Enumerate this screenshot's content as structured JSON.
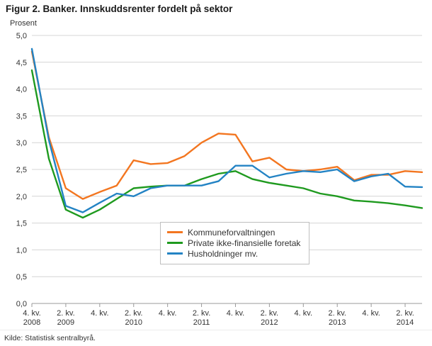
{
  "title": "Figur 2. Banker. Innskuddsrenter fordelt på sektor",
  "source": "Kilde: Statistisk sentralbyrå.",
  "chart_data": {
    "type": "line",
    "title": "Figur 2. Banker. Innskuddsrenter fordelt på sektor",
    "xlabel": "",
    "ylabel": "Prosent",
    "ylim": [
      0,
      5
    ],
    "ytick_step": 0.5,
    "grid": true,
    "legend_position": "center-bottom",
    "categories": [
      "4. kv. 2008",
      "1. kv. 2009",
      "2. kv. 2009",
      "3. kv. 2009",
      "4. kv. 2009",
      "1. kv. 2010",
      "2. kv. 2010",
      "3. kv. 2010",
      "4. kv. 2010",
      "1. kv. 2011",
      "2. kv. 2011",
      "3. kv. 2011",
      "4. kv. 2011",
      "1. kv. 2012",
      "2. kv. 2012",
      "3. kv. 2012",
      "4. kv. 2012",
      "1. kv. 2013",
      "2. kv. 2013",
      "3. kv. 2013",
      "4. kv. 2013",
      "1. kv. 2014",
      "2. kv. 2014",
      "3. kv. 2014"
    ],
    "x_tick_labels": [
      {
        "index": 0,
        "line1": "4. kv.",
        "line2": "2008"
      },
      {
        "index": 2,
        "line1": "2. kv.",
        "line2": "2009"
      },
      {
        "index": 4,
        "line1": "4. kv.",
        "line2": ""
      },
      {
        "index": 6,
        "line1": "2. kv.",
        "line2": "2010"
      },
      {
        "index": 8,
        "line1": "4. kv.",
        "line2": ""
      },
      {
        "index": 10,
        "line1": "2. kv.",
        "line2": "2011"
      },
      {
        "index": 12,
        "line1": "4. kv.",
        "line2": ""
      },
      {
        "index": 14,
        "line1": "2. kv.",
        "line2": "2012"
      },
      {
        "index": 16,
        "line1": "4. kv.",
        "line2": ""
      },
      {
        "index": 18,
        "line1": "2. kv.",
        "line2": "2013"
      },
      {
        "index": 20,
        "line1": "4. kv.",
        "line2": ""
      },
      {
        "index": 22,
        "line1": "2. kv.",
        "line2": "2014"
      }
    ],
    "y_tick_labels": [
      "0,0",
      "0,5",
      "1,0",
      "1,5",
      "2,0",
      "2,5",
      "3,0",
      "3,5",
      "4,0",
      "4,5",
      "5,0"
    ],
    "series": [
      {
        "name": "Kommuneforvaltningen",
        "color": "#f37620",
        "values": [
          4.7,
          3.1,
          2.15,
          1.95,
          2.08,
          2.2,
          2.67,
          2.6,
          2.62,
          2.75,
          3.0,
          3.17,
          3.15,
          2.65,
          2.72,
          2.5,
          2.47,
          2.5,
          2.55,
          2.3,
          2.4,
          2.4,
          2.47,
          2.45
        ]
      },
      {
        "name": "Private ikke-finansielle foretak",
        "color": "#1f9a1f",
        "values": [
          4.35,
          2.7,
          1.75,
          1.6,
          1.75,
          1.95,
          2.15,
          2.18,
          2.2,
          2.2,
          2.32,
          2.42,
          2.47,
          2.32,
          2.25,
          2.2,
          2.15,
          2.05,
          2.0,
          1.92,
          1.9,
          1.87,
          1.83,
          1.78
        ]
      },
      {
        "name": "Husholdninger mv.",
        "color": "#2383c4",
        "values": [
          4.75,
          3.05,
          1.82,
          1.7,
          1.88,
          2.05,
          2.0,
          2.15,
          2.2,
          2.2,
          2.2,
          2.28,
          2.57,
          2.57,
          2.35,
          2.42,
          2.47,
          2.45,
          2.5,
          2.28,
          2.37,
          2.42,
          2.18,
          2.17
        ]
      }
    ]
  }
}
